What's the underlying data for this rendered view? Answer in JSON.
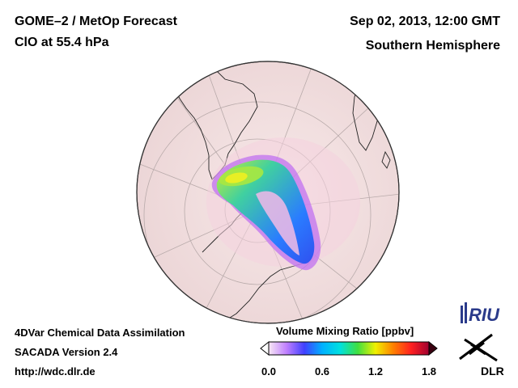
{
  "header": {
    "title": "GOME–2 / MetOp Forecast",
    "product": "ClO at 55.4 hPa",
    "date": "Sep 02, 2013, 12:00 GMT",
    "region": "Southern Hemisphere"
  },
  "footer": {
    "line1": "4DVar Chemical Data Assimilation",
    "line2": "SACADA Version 2.4",
    "url": "http://wdc.dlr.de"
  },
  "colorbar": {
    "title": "Volume Mixing Ratio [ppbv]",
    "ticks": [
      "0.0",
      "0.6",
      "1.2",
      "1.8"
    ],
    "min": 0.0,
    "max": 1.8,
    "colors": [
      "#f8e8f4",
      "#c080ff",
      "#4040ff",
      "#00b0ff",
      "#00e0e0",
      "#40e040",
      "#f0f000",
      "#ff8000",
      "#ff2020",
      "#a00030"
    ]
  },
  "logos": {
    "riu": "RIU",
    "dlr": "DLR"
  },
  "colors": {
    "ocean": "#f3dfe0",
    "grid": "#c0b4b4",
    "coast": "#202020"
  }
}
